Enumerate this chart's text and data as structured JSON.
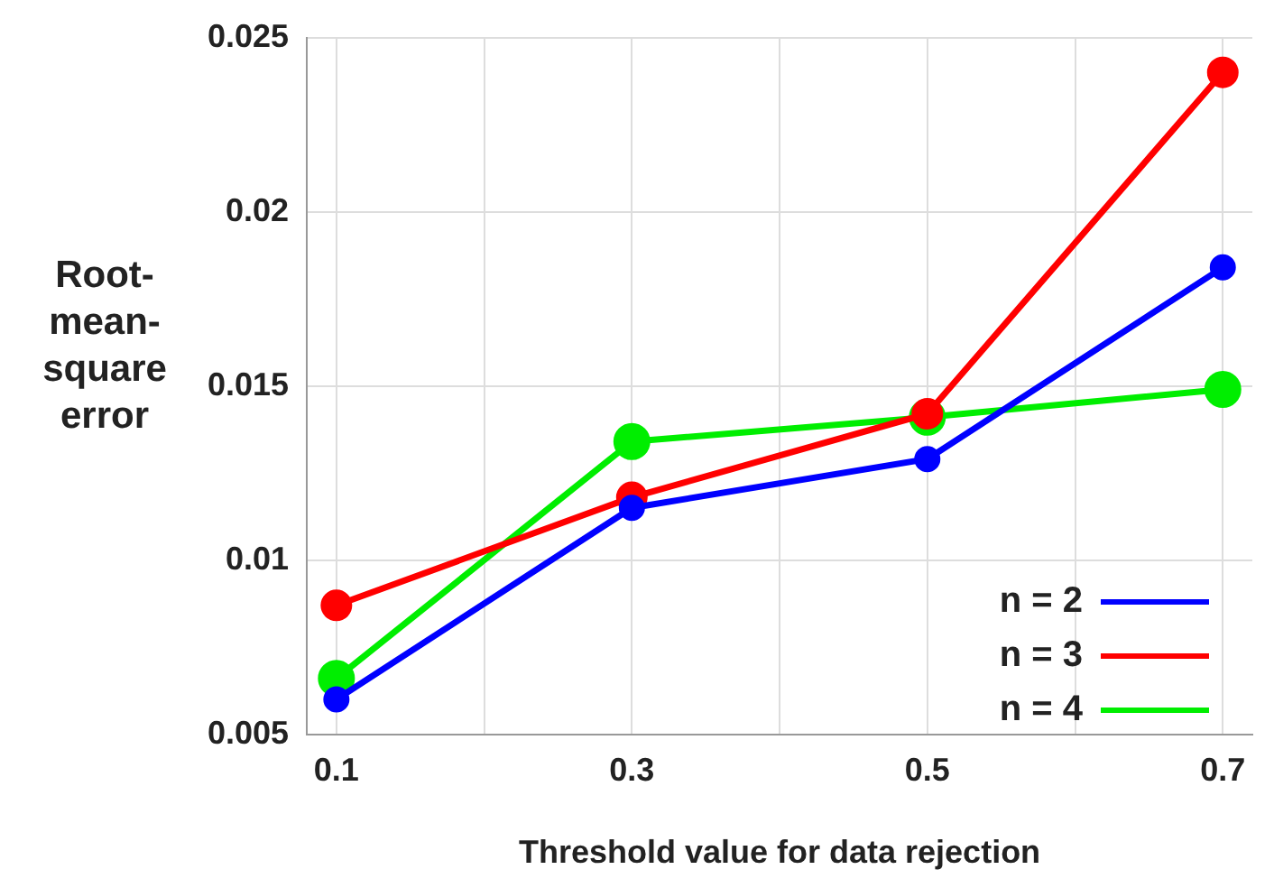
{
  "chart_data": {
    "type": "line",
    "xlabel": "Threshold value for data rejection",
    "ylabel": "Root-mean-square error",
    "x": [
      0.1,
      0.3,
      0.5,
      0.7
    ],
    "series": [
      {
        "name": "n = 2",
        "color": "#0000ff",
        "values": [
          0.006,
          0.0115,
          0.0129,
          0.0184
        ]
      },
      {
        "name": "n = 3",
        "color": "#ff0000",
        "values": [
          0.0087,
          0.0118,
          0.0142,
          0.024
        ]
      },
      {
        "name": "n = 4",
        "color": "#00ee00",
        "values": [
          0.0066,
          0.0134,
          0.0141,
          0.0149
        ]
      }
    ],
    "xlim": [
      0.08,
      0.72
    ],
    "xticks": [
      0.1,
      {
        "value": 0.2,
        "label": null
      },
      0.3,
      {
        "value": 0.4,
        "label": null
      },
      0.5,
      {
        "value": 0.6,
        "label": null
      },
      0.7
    ],
    "ylim": [
      0.005,
      0.025
    ],
    "yticks": [
      0.005,
      0.01,
      0.015,
      0.02,
      0.025
    ],
    "grid": true,
    "legend": "bottom right",
    "marker": "circle",
    "line_style": "solid"
  }
}
